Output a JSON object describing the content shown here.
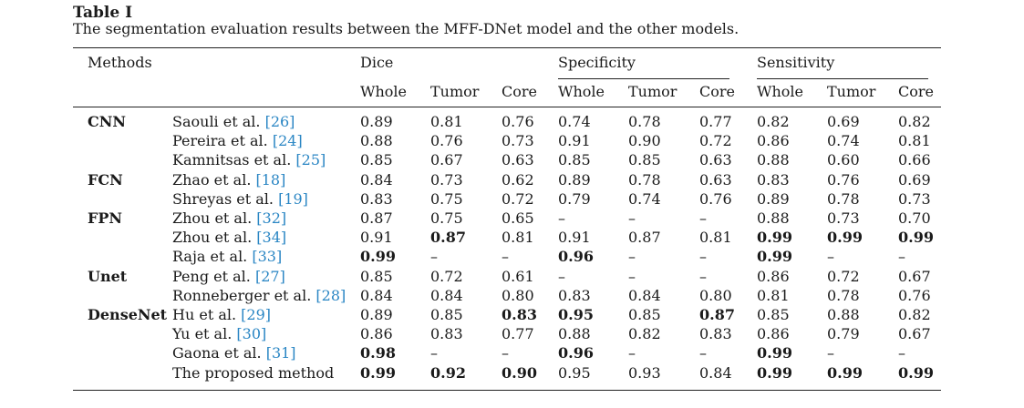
{
  "caption": {
    "title": "Table I",
    "text": "The segmentation evaluation results between the MFF-DNet model and the other models."
  },
  "header": {
    "methods": "Methods",
    "groups": [
      "Dice",
      "Specificity",
      "Sensitivity"
    ],
    "subcols": [
      "Whole",
      "Tumor",
      "Core"
    ]
  },
  "rows": [
    {
      "group": "CNN",
      "name": "Saouli et al.",
      "ref": "[26]",
      "vals": [
        "0.89",
        "0.81",
        "0.76",
        "0.74",
        "0.78",
        "0.77",
        "0.82",
        "0.69",
        "0.82"
      ],
      "bold": []
    },
    {
      "group": "",
      "name": "Pereira et al.",
      "ref": "[24]",
      "vals": [
        "0.88",
        "0.76",
        "0.73",
        "0.91",
        "0.90",
        "0.72",
        "0.86",
        "0.74",
        "0.81"
      ],
      "bold": []
    },
    {
      "group": "",
      "name": "Kamnitsas et al.",
      "ref": "[25]",
      "vals": [
        "0.85",
        "0.67",
        "0.63",
        "0.85",
        "0.85",
        "0.63",
        "0.88",
        "0.60",
        "0.66"
      ],
      "bold": []
    },
    {
      "group": "FCN",
      "name": "Zhao et al.",
      "ref": "[18]",
      "vals": [
        "0.84",
        "0.73",
        "0.62",
        "0.89",
        "0.78",
        "0.63",
        "0.83",
        "0.76",
        "0.69"
      ],
      "bold": []
    },
    {
      "group": "",
      "name": "Shreyas et al.",
      "ref": "[19]",
      "vals": [
        "0.83",
        "0.75",
        "0.72",
        "0.79",
        "0.74",
        "0.76",
        "0.89",
        "0.78",
        "0.73"
      ],
      "bold": []
    },
    {
      "group": "FPN",
      "name": "Zhou et al.",
      "ref": "[32]",
      "vals": [
        "0.87",
        "0.75",
        "0.65",
        "–",
        "–",
        "–",
        "0.88",
        "0.73",
        "0.70"
      ],
      "bold": []
    },
    {
      "group": "",
      "name": "Zhou et al.",
      "ref": "[34]",
      "vals": [
        "0.91",
        "0.87",
        "0.81",
        "0.91",
        "0.87",
        "0.81",
        "0.99",
        "0.99",
        "0.99"
      ],
      "bold": [
        1,
        6,
        7,
        8
      ]
    },
    {
      "group": "",
      "name": "Raja et al.",
      "ref": "[33]",
      "vals": [
        "0.99",
        "–",
        "–",
        "0.96",
        "–",
        "–",
        "0.99",
        "–",
        "–"
      ],
      "bold": [
        0,
        3,
        6
      ]
    },
    {
      "group": "Unet",
      "name": "Peng et al.",
      "ref": "[27]",
      "vals": [
        "0.85",
        "0.72",
        "0.61",
        "–",
        "–",
        "–",
        "0.86",
        "0.72",
        "0.67"
      ],
      "bold": []
    },
    {
      "group": "",
      "name": "Ronneberger et al.",
      "ref": "[28]",
      "vals": [
        "0.84",
        "0.84",
        "0.80",
        "0.83",
        "0.84",
        "0.80",
        "0.81",
        "0.78",
        "0.76"
      ],
      "bold": []
    },
    {
      "group": "DenseNet",
      "name": "Hu et al.",
      "ref": "[29]",
      "vals": [
        "0.89",
        "0.85",
        "0.83",
        "0.95",
        "0.85",
        "0.87",
        "0.85",
        "0.88",
        "0.82"
      ],
      "bold": [
        2,
        3,
        5
      ]
    },
    {
      "group": "",
      "name": "Yu et al.",
      "ref": "[30]",
      "vals": [
        "0.86",
        "0.83",
        "0.77",
        "0.88",
        "0.82",
        "0.83",
        "0.86",
        "0.79",
        "0.67"
      ],
      "bold": []
    },
    {
      "group": "",
      "name": "Gaona et al.",
      "ref": "[31]",
      "vals": [
        "0.98",
        "–",
        "–",
        "0.96",
        "–",
        "–",
        "0.99",
        "–",
        "–"
      ],
      "bold": [
        0,
        3,
        6
      ]
    },
    {
      "group": "",
      "name": "The proposed method",
      "ref": "",
      "vals": [
        "0.99",
        "0.92",
        "0.90",
        "0.95",
        "0.93",
        "0.84",
        "0.99",
        "0.99",
        "0.99"
      ],
      "bold": [
        0,
        1,
        2,
        6,
        7,
        8
      ]
    }
  ]
}
